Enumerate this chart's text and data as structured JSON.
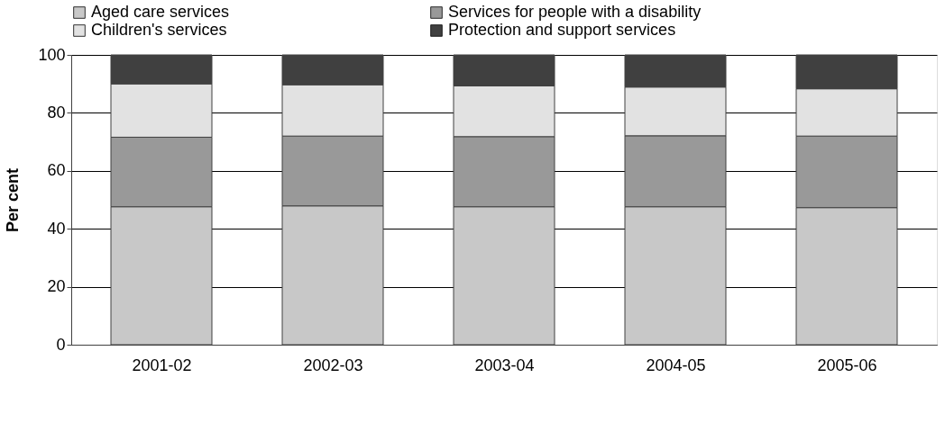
{
  "chart_data": {
    "type": "bar",
    "stacked": true,
    "ylabel": "Per cent",
    "categories": [
      "2001-02",
      "2002-03",
      "2003-04",
      "2004-05",
      "2005-06"
    ],
    "series": [
      {
        "name": "Aged care services",
        "color": "#c8c8c8",
        "values": [
          47.6,
          47.9,
          47.6,
          47.6,
          47.3
        ]
      },
      {
        "name": "Services for people with a disability",
        "color": "#999999",
        "values": [
          24.0,
          24.1,
          24.2,
          24.5,
          24.7
        ]
      },
      {
        "name": "Children's services",
        "color": "#e2e2e2",
        "values": [
          18.4,
          17.7,
          17.5,
          16.8,
          16.3
        ]
      },
      {
        "name": "Protection and support services",
        "color": "#404040",
        "values": [
          10.0,
          10.3,
          10.7,
          11.1,
          11.7
        ]
      }
    ],
    "ylim": [
      0,
      100
    ],
    "yticks": [
      0,
      20,
      40,
      60,
      80,
      100
    ],
    "grid": "y",
    "legend": "top"
  }
}
